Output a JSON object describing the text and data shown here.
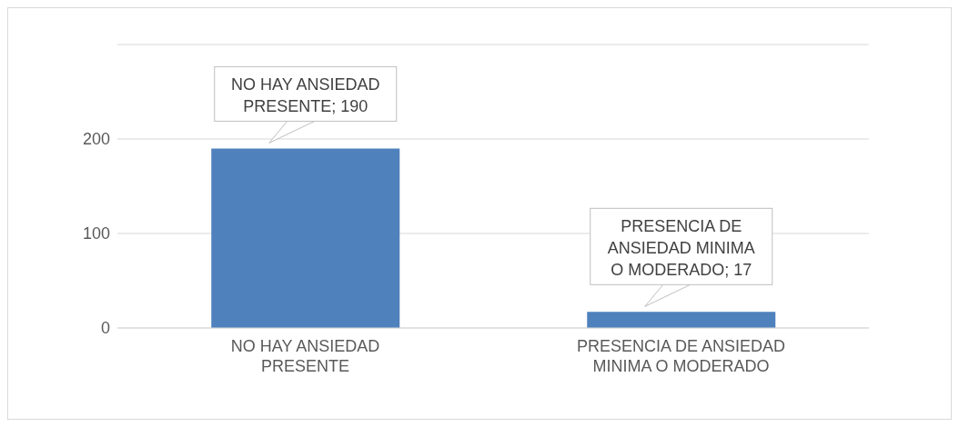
{
  "chart_data": {
    "type": "bar",
    "categories": [
      "NO HAY ANSIEDAD PRESENTE",
      "PRESENCIA DE ANSIEDAD MINIMA O MODERADO"
    ],
    "values": [
      190,
      17
    ],
    "value_labels": [
      "NO HAY ANSIEDAD PRESENTE; 190",
      "PRESENCIA DE ANSIEDAD MINIMA O MODERADO; 17"
    ],
    "color": "#4f81bd",
    "ylim": [
      0,
      300
    ],
    "yticks": [
      0,
      100,
      200,
      {
        "value": 300,
        "label": null
      }
    ],
    "grid": "y"
  }
}
